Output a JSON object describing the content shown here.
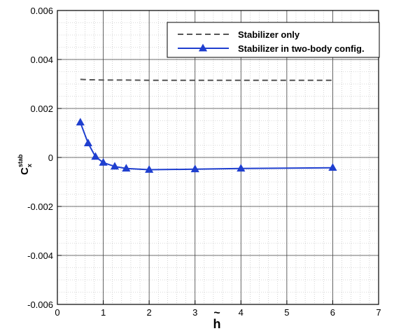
{
  "chart_data": {
    "type": "line",
    "xlabel": "h",
    "xlabel_accent": "~",
    "ylabel": "C",
    "ylabel_superscript": "stab",
    "ylabel_subscript": "x",
    "xlim": [
      0,
      7
    ],
    "ylim": [
      -0.006,
      0.006
    ],
    "x_ticks": [
      0,
      1,
      2,
      3,
      4,
      5,
      6,
      7
    ],
    "x_tick_labels": [
      "0",
      "1",
      "2",
      "3",
      "4",
      "5",
      "6",
      "7"
    ],
    "y_ticks": [
      -0.006,
      -0.004,
      -0.002,
      0,
      0.002,
      0.004,
      0.006
    ],
    "y_tick_labels": [
      "-0.006",
      "-0.004",
      "-0.002",
      "0",
      "0.002",
      "0.004",
      "0.006"
    ],
    "grid": "major and minor",
    "legend_position": "top-right",
    "series": [
      {
        "name": "Stabilizer only",
        "color": "#555555",
        "style": "dashed",
        "marker": "none",
        "x": [
          0.5,
          0.6,
          0.7,
          0.8,
          1.0,
          1.25,
          1.5,
          2.0,
          3.0,
          4.0,
          5.0,
          6.0
        ],
        "y": [
          0.00319,
          0.00318,
          0.00317,
          0.00317,
          0.00316,
          0.00316,
          0.00316,
          0.00315,
          0.00315,
          0.00315,
          0.00315,
          0.00315
        ]
      },
      {
        "name": "Stabilizer in two-body config.",
        "color": "#1f3fcf",
        "style": "solid",
        "marker": "triangle",
        "x": [
          0.5,
          0.67,
          0.83,
          1.0,
          1.25,
          1.5,
          2.0,
          3.0,
          4.0,
          6.0
        ],
        "y": [
          0.00143,
          0.00058,
          3e-05,
          -0.00021,
          -0.00037,
          -0.00045,
          -0.0005,
          -0.00048,
          -0.00045,
          -0.00042
        ]
      }
    ]
  }
}
